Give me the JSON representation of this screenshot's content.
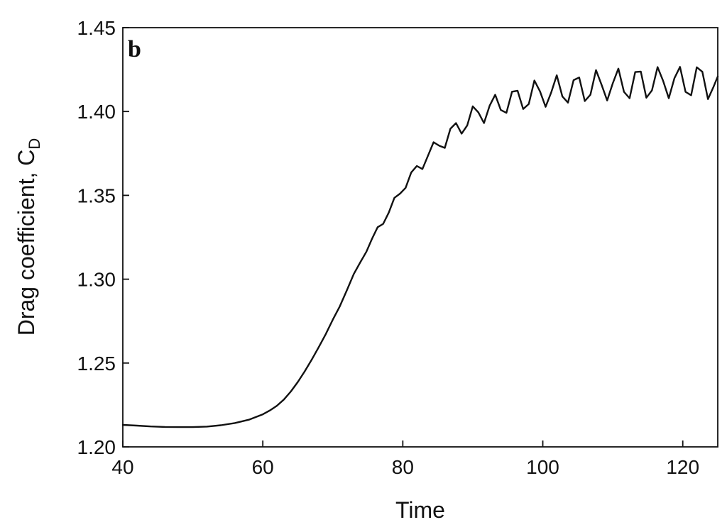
{
  "chart_data": {
    "type": "line",
    "panel_label": "b",
    "xlabel": "Time",
    "ylabel": "Drag coefficient, C",
    "ylabel_subscript": "D",
    "xlim": [
      40,
      125
    ],
    "ylim": [
      1.2,
      1.45
    ],
    "x_ticks": [
      {
        "value": 40,
        "label": "40"
      },
      {
        "value": 60,
        "label": "60"
      },
      {
        "value": 80,
        "label": "80"
      },
      {
        "value": 100,
        "label": "100"
      },
      {
        "value": 120,
        "label": "120"
      }
    ],
    "y_ticks": [
      {
        "value": 1.2,
        "label": "1.20"
      },
      {
        "value": 1.25,
        "label": "1.25"
      },
      {
        "value": 1.3,
        "label": "1.30"
      },
      {
        "value": 1.35,
        "label": "1.35"
      },
      {
        "value": 1.4,
        "label": "1.40"
      },
      {
        "value": 1.45,
        "label": "1.45"
      }
    ],
    "grid": false,
    "legend": "none",
    "series": [
      {
        "line_color": "#111111",
        "x": [
          40,
          42,
          44,
          46,
          48,
          50,
          52,
          54,
          56,
          58,
          60,
          61,
          62,
          63,
          64,
          65,
          66,
          67,
          68,
          69,
          70,
          71,
          72,
          73,
          74,
          74.8,
          75.6,
          76.4,
          77.2,
          78,
          78.8,
          79.6,
          80.4,
          81.2,
          82,
          82.8,
          83.6,
          84.4,
          85.2,
          86,
          86.8,
          87.6,
          88.4,
          89.2,
          90,
          90.8,
          91.6,
          92.4,
          93.2,
          94,
          94.8,
          95.6,
          96.4,
          97.2,
          98,
          98.8,
          99.6,
          100.4,
          101.2,
          102,
          102.8,
          103.6,
          104.4,
          105.2,
          106,
          106.8,
          107.6,
          108.4,
          109.2,
          110,
          110.8,
          111.6,
          112.4,
          113.2,
          114,
          114.8,
          115.6,
          116.4,
          117.2,
          118,
          118.8,
          119.6,
          120.4,
          121.2,
          122,
          122.8,
          123.6,
          124.4,
          125
        ],
        "y": [
          1.2131,
          1.2127,
          1.2122,
          1.2119,
          1.2118,
          1.2118,
          1.2121,
          1.2129,
          1.2142,
          1.2162,
          1.2194,
          1.2217,
          1.2245,
          1.2282,
          1.233,
          1.2387,
          1.2451,
          1.2521,
          1.2595,
          1.2673,
          1.2759,
          1.2838,
          1.2933,
          1.3031,
          1.3106,
          1.3164,
          1.3241,
          1.331,
          1.333,
          1.3397,
          1.3485,
          1.351,
          1.3545,
          1.3636,
          1.3675,
          1.3657,
          1.3736,
          1.3817,
          1.3796,
          1.3783,
          1.3897,
          1.3931,
          1.3868,
          1.3917,
          1.4031,
          1.3995,
          1.3931,
          1.4034,
          1.41,
          1.4009,
          1.3992,
          1.4118,
          1.4124,
          1.4015,
          1.4045,
          1.4185,
          1.412,
          1.4028,
          1.4114,
          1.4216,
          1.409,
          1.4053,
          1.4187,
          1.4203,
          1.4062,
          1.41,
          1.4247,
          1.416,
          1.4066,
          1.4168,
          1.4256,
          1.4117,
          1.4079,
          1.4235,
          1.4238,
          1.4082,
          1.4126,
          1.4265,
          1.4182,
          1.4079,
          1.4198,
          1.4266,
          1.4117,
          1.4097,
          1.4264,
          1.4237,
          1.4074,
          1.4148,
          1.4209
        ]
      }
    ]
  }
}
